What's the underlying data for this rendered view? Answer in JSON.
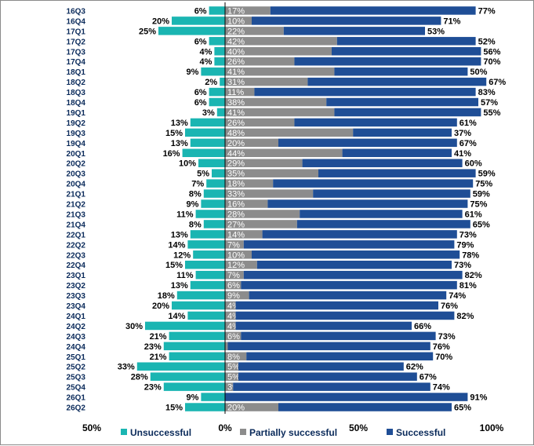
{
  "chart_data": {
    "type": "bar",
    "orientation": "horizontal-stacked-diverging",
    "categories": [
      "16Q3",
      "16Q4",
      "17Q1",
      "17Q2",
      "17Q3",
      "17Q4",
      "18Q1",
      "18Q2",
      "18Q3",
      "18Q4",
      "19Q1",
      "19Q2",
      "19Q3",
      "19Q4",
      "20Q1",
      "20Q2",
      "20Q3",
      "20Q4",
      "21Q1",
      "21Q2",
      "21Q3",
      "21Q4",
      "22Q1",
      "22Q2",
      "22Q3",
      "22Q4",
      "23Q1",
      "23Q2",
      "23Q3",
      "23Q4",
      "24Q1",
      "24Q2",
      "24Q3",
      "24Q4",
      "25Q1",
      "25Q2",
      "25Q3",
      "25Q4",
      "26Q1",
      "26Q2"
    ],
    "series": [
      {
        "name": "Unsuccessful",
        "color": "#1ab5b2",
        "values": [
          6,
          20,
          25,
          6,
          4,
          4,
          9,
          2,
          6,
          6,
          3,
          13,
          15,
          13,
          16,
          10,
          5,
          7,
          8,
          9,
          11,
          8,
          13,
          14,
          12,
          15,
          11,
          13,
          18,
          20,
          14,
          30,
          21,
          23,
          21,
          33,
          28,
          23,
          9,
          15
        ]
      },
      {
        "name": "Partially successful",
        "color": "#8c8c8c",
        "values": [
          17,
          10,
          22,
          42,
          40,
          26,
          41,
          31,
          11,
          38,
          41,
          26,
          48,
          20,
          44,
          29,
          35,
          18,
          33,
          16,
          28,
          27,
          14,
          7,
          10,
          12,
          7,
          6,
          9,
          4,
          4,
          4,
          6,
          1,
          8,
          5,
          5,
          3,
          0,
          20
        ]
      },
      {
        "name": "Successful",
        "color": "#1f4e96",
        "values": [
          77,
          71,
          53,
          52,
          56,
          70,
          50,
          67,
          83,
          57,
          55,
          61,
          37,
          67,
          41,
          60,
          59,
          75,
          59,
          75,
          61,
          65,
          73,
          79,
          78,
          73,
          82,
          81,
          74,
          76,
          82,
          66,
          73,
          76,
          70,
          62,
          67,
          74,
          91,
          65
        ]
      }
    ],
    "x_ticks": [
      "50%",
      "0%",
      "50%",
      "100%"
    ],
    "xlim": [
      -50,
      100
    ],
    "legend_position": "bottom",
    "gridlines": false
  }
}
